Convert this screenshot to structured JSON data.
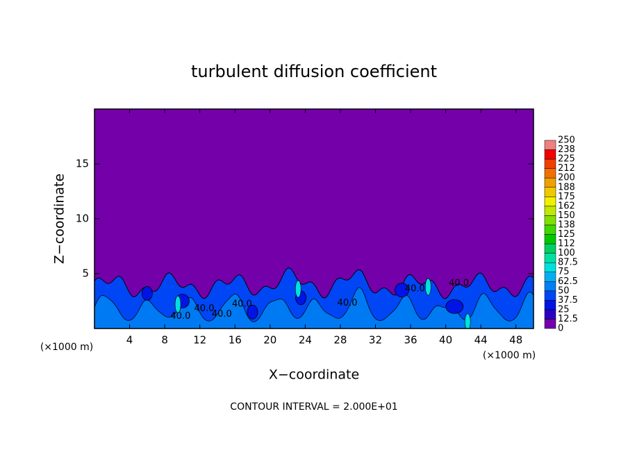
{
  "chart_data": {
    "type": "contour",
    "title": "turbulent diffusion coefficient",
    "xlabel": "X−coordinate",
    "ylabel": "Z−coordinate",
    "x_unit_label": "(×1000 m)",
    "y_unit_label": "(×1000 m)",
    "footer": "CONTOUR INTERVAL = 2.000E+01",
    "xlim": [
      0,
      50
    ],
    "ylim": [
      0,
      20
    ],
    "xticks": [
      4,
      8,
      12,
      16,
      20,
      24,
      28,
      32,
      36,
      40,
      44,
      48
    ],
    "yticks": [
      5,
      10,
      15
    ],
    "contour_labels": [
      "40.0",
      "40.0",
      "40.0",
      "40.0",
      "40.0",
      "40.0",
      "40.0"
    ],
    "colorbar": {
      "levels": [
        0,
        12.5,
        25,
        37.5,
        50,
        62.5,
        75,
        87.5,
        100,
        {
          "value": 112.5,
          "label": "112"
        },
        125,
        {
          "value": 137.5,
          "label": "138"
        },
        150,
        {
          "value": 162.5,
          "label": "162"
        },
        175,
        {
          "value": 187.5,
          "label": "188"
        },
        200,
        {
          "value": 212.5,
          "label": "212"
        },
        225,
        {
          "value": 237.5,
          "label": "238"
        },
        250
      ],
      "colors": [
        "#7400aa",
        "#2a00c4",
        "#0014e6",
        "#0046f4",
        "#0080f2",
        "#00b0f0",
        "#00e0e0",
        "#00e0a0",
        "#00d060",
        "#00c800",
        "#40d800",
        "#80e000",
        "#c0e800",
        "#f0f000",
        "#f0c800",
        "#f0a000",
        "#f07000",
        "#f04000",
        "#f00000",
        "#f08080"
      ]
    }
  }
}
